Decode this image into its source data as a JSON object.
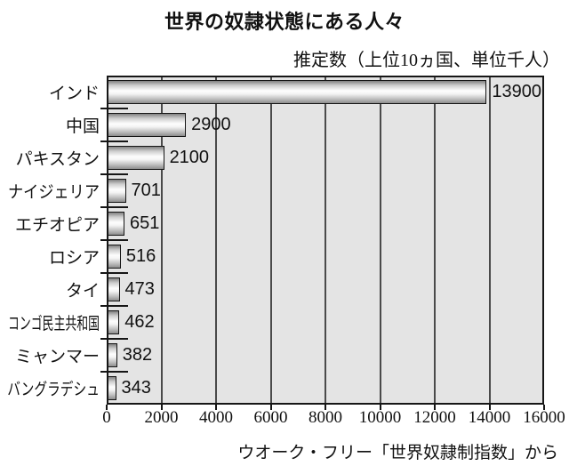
{
  "title": "世界の奴隷状態にある人々",
  "subtitle": "推定数（上位10ヵ国、単位千人）",
  "source": "ウオーク・フリー「世界奴隷制指数」から",
  "chart_data": {
    "type": "bar",
    "orientation": "horizontal",
    "title": "世界の奴隷状態にある人々",
    "subtitle": "推定数（上位10ヵ国、単位千人）",
    "categories": [
      "インド",
      "中国",
      "パキスタン",
      "ナイジェリア",
      "エチオピア",
      "ロシア",
      "タイ",
      "コンゴ民主共和国",
      "ミャンマー",
      "バングラデシュ"
    ],
    "values": [
      13900,
      2900,
      2100,
      701,
      651,
      516,
      473,
      462,
      382,
      343
    ],
    "value_labels": [
      "13900",
      "2900",
      "2100",
      "701",
      "651",
      "516",
      "473",
      "462",
      "382",
      "343"
    ],
    "xlabel": "",
    "ylabel": "",
    "xlim": [
      0,
      16000
    ],
    "x_ticks": [
      0,
      2000,
      4000,
      6000,
      8000,
      10000,
      12000,
      14000,
      16000
    ],
    "grid": true,
    "legend": false,
    "source_note": "ウオーク・フリー「世界奴隷制指数」から"
  },
  "colors": {
    "page_bg": "#ffffff",
    "plot_bg": "#e4e4e4",
    "grid": "#4a4a4a",
    "border": "#161616",
    "bar_highlight": "#fdfdfd",
    "bar_shadow": "#828282",
    "text": "#111111"
  }
}
